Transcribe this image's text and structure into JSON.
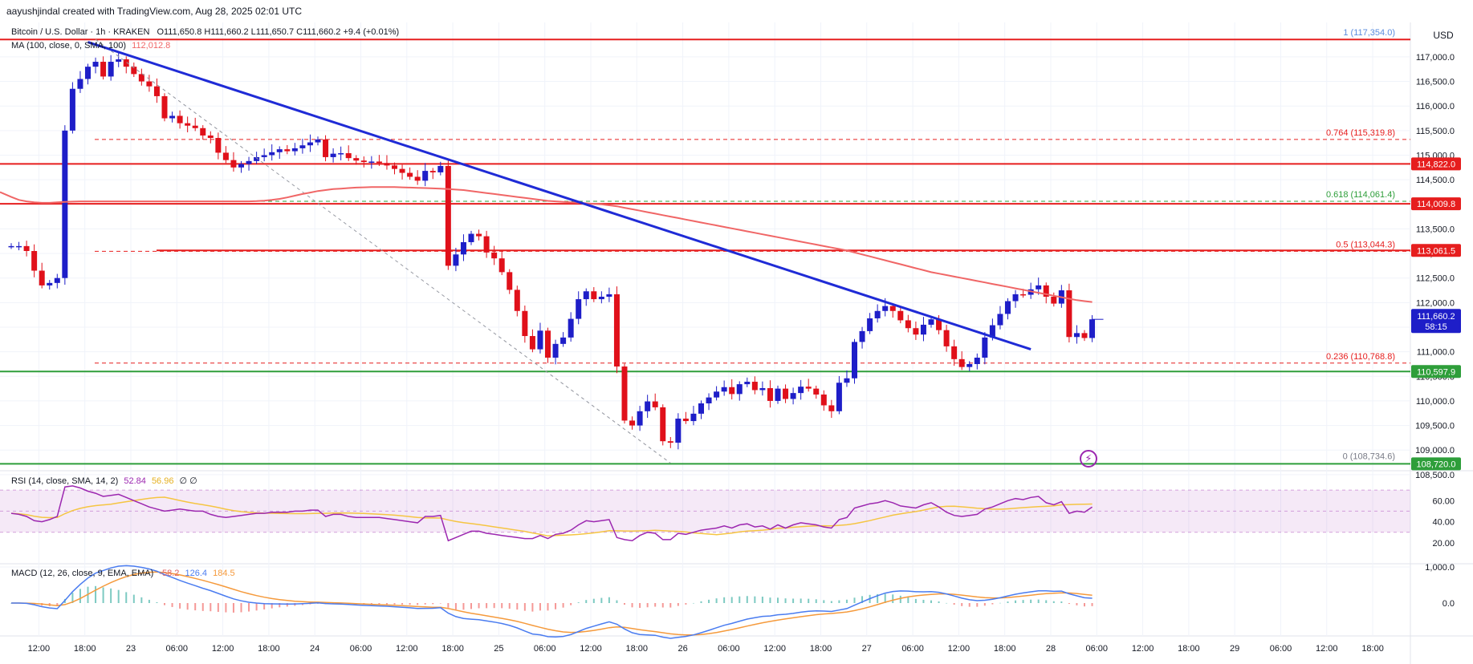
{
  "attribution": "aayushjindal created with TradingView.com, Aug 28, 2025 02:01 UTC",
  "header": {
    "symbol": "Bitcoin / U.S. Dollar · 1h · KRAKEN",
    "ohlc": "O111,650.8  H111,660.2  L111,650.7  C111,660.2  +9.4 (+0.01%)",
    "ma_label": "MA (100, close, 0, SMA, 100)",
    "ma_value": "112,012.8",
    "currency": "USD"
  },
  "colors": {
    "up": "#1e1ec8",
    "down": "#e0101a",
    "trend": "#1f2bd6",
    "ma": "#f06666",
    "red_level": "#e61e1e",
    "green_level": "#2e9e3a",
    "rsi": "#9c27b0",
    "rsi_ma": "#f5c542",
    "macd": "#4a7cf0",
    "signal": "#f59a3c"
  },
  "chart_data": [
    {
      "type": "candlestick",
      "title": "Bitcoin / U.S. Dollar · 1h · KRAKEN",
      "ylim": [
        108400,
        117700
      ],
      "y_ticks": [
        "117,000.0",
        "116,500.0",
        "116,000.0",
        "115,500.0",
        "115,000.0",
        "114,500.0",
        "114,000.0",
        "113,500.0",
        "113,000.0",
        "112,500.0",
        "112,000.0",
        "111,500.0",
        "111,000.0",
        "110,500.0",
        "110,000.0",
        "109,500.0",
        "109,000.0",
        "108,500.0"
      ],
      "x_ticks": [
        {
          "label": "12:00",
          "i": 3.6
        },
        {
          "label": "18:00",
          "i": 9.6
        },
        {
          "label": "23",
          "i": 15.6
        },
        {
          "label": "06:00",
          "i": 21.6
        },
        {
          "label": "12:00",
          "i": 27.6
        },
        {
          "label": "18:00",
          "i": 33.6
        },
        {
          "label": "24",
          "i": 39.6
        },
        {
          "label": "06:00",
          "i": 45.6
        },
        {
          "label": "12:00",
          "i": 51.6
        },
        {
          "label": "18:00",
          "i": 57.6
        },
        {
          "label": "25",
          "i": 63.6
        },
        {
          "label": "06:00",
          "i": 69.6
        },
        {
          "label": "12:00",
          "i": 75.6
        },
        {
          "label": "18:00",
          "i": 81.6
        },
        {
          "label": "26",
          "i": 87.6
        },
        {
          "label": "06:00",
          "i": 93.6
        },
        {
          "label": "12:00",
          "i": 99.6
        },
        {
          "label": "18:00",
          "i": 105.6
        },
        {
          "label": "27",
          "i": 111.6
        },
        {
          "label": "06:00",
          "i": 117.6
        },
        {
          "label": "12:00",
          "i": 123.6
        },
        {
          "label": "18:00",
          "i": 129.6
        },
        {
          "label": "28",
          "i": 135.6
        },
        {
          "label": "06:00",
          "i": 141.6
        },
        {
          "label": "12:00",
          "i": 147.6
        },
        {
          "label": "18:00",
          "i": 153.6
        },
        {
          "label": "29",
          "i": 159.6
        },
        {
          "label": "06:00",
          "i": 165.6
        },
        {
          "label": "12:00",
          "i": 171.6
        },
        {
          "label": "18:00",
          "i": 177.6
        }
      ],
      "closes": [
        113150,
        113150,
        113050,
        112650,
        112350,
        112400,
        112500,
        115500,
        116350,
        116550,
        116800,
        116900,
        116600,
        116900,
        116950,
        116800,
        116650,
        116500,
        116400,
        116200,
        115750,
        115800,
        115650,
        115600,
        115550,
        115400,
        115350,
        115050,
        114900,
        114750,
        114820,
        114880,
        114960,
        115000,
        115060,
        115120,
        115080,
        115140,
        115200,
        115260,
        115320,
        114960,
        115030,
        115040,
        114940,
        114890,
        114860,
        114870,
        114840,
        114790,
        114720,
        114640,
        114560,
        114480,
        114680,
        114650,
        114780,
        112750,
        112980,
        113230,
        113400,
        113350,
        113020,
        112900,
        112620,
        112260,
        111830,
        111320,
        111050,
        111430,
        110880,
        111160,
        111290,
        111670,
        112070,
        112230,
        112070,
        112120,
        112170,
        110700,
        109600,
        109500,
        109790,
        109990,
        109870,
        109180,
        109150,
        109640,
        109590,
        109740,
        109950,
        110070,
        110190,
        110280,
        110140,
        110340,
        110390,
        110220,
        110260,
        110000,
        110250,
        110040,
        110160,
        110290,
        110250,
        110130,
        109910,
        109790,
        110370,
        110460,
        111200,
        111420,
        111680,
        111830,
        111930,
        111830,
        111640,
        111480,
        111350,
        111550,
        111660,
        111440,
        111110,
        110850,
        110690,
        110750,
        110880,
        111290,
        111540,
        111770,
        112030,
        112170,
        112160,
        112270,
        112350,
        112120,
        111980,
        112250,
        111300,
        111380,
        111280,
        111660
      ],
      "opens": [
        113150,
        113150,
        113150,
        113050,
        112650,
        112350,
        112400,
        112500,
        115500,
        116350,
        116550,
        116800,
        116900,
        116600,
        116900,
        116950,
        116800,
        116650,
        116500,
        116400,
        116200,
        115750,
        115800,
        115650,
        115600,
        115550,
        115400,
        115350,
        115050,
        114900,
        114750,
        114820,
        114880,
        114960,
        115000,
        115060,
        115120,
        115080,
        115140,
        115200,
        115260,
        115320,
        114960,
        115030,
        115040,
        114940,
        114890,
        114860,
        114870,
        114840,
        114790,
        114720,
        114640,
        114560,
        114480,
        114680,
        114650,
        114780,
        112750,
        112980,
        113230,
        113400,
        113350,
        113020,
        112900,
        112620,
        112260,
        111830,
        111320,
        111050,
        111430,
        110880,
        111160,
        111290,
        111670,
        112070,
        112230,
        112070,
        112120,
        112170,
        110700,
        109600,
        109500,
        109790,
        109990,
        109870,
        109180,
        109150,
        109640,
        109590,
        109740,
        109950,
        110070,
        110190,
        110280,
        110140,
        110340,
        110390,
        110220,
        110260,
        110000,
        110250,
        110040,
        110160,
        110290,
        110250,
        110130,
        109910,
        109790,
        110370,
        110460,
        111200,
        111420,
        111680,
        111830,
        111930,
        111830,
        111640,
        111480,
        111350,
        111550,
        111660,
        111440,
        111110,
        110850,
        110690,
        110750,
        110880,
        111290,
        111540,
        111770,
        112030,
        112170,
        112160,
        112270,
        112350,
        112120,
        111980,
        112250,
        111300,
        111380,
        111280
      ],
      "ma100": [
        114150,
        114090,
        114060,
        114040,
        114030,
        114030,
        114040,
        114050,
        114055,
        114060,
        114060,
        114060,
        114060,
        114060,
        114060,
        114060,
        114060,
        114060,
        114060,
        114060,
        114060,
        114060,
        114060,
        114060,
        114060,
        114060,
        114060,
        114060,
        114060,
        114060,
        114060,
        114060,
        114065,
        114075,
        114090,
        114110,
        114140,
        114175,
        114210,
        114240,
        114270,
        114290,
        114310,
        114320,
        114330,
        114340,
        114345,
        114350,
        114350,
        114350,
        114350,
        114345,
        114340,
        114335,
        114330,
        114325,
        114320,
        114310,
        114300,
        114290,
        114270,
        114250,
        114230,
        114210,
        114190,
        114170,
        114150,
        114130,
        114110,
        114090,
        114070,
        114060,
        114050,
        114040,
        114030,
        114020,
        114010,
        114000,
        113980,
        113960,
        113930,
        113900,
        113870,
        113840,
        113810,
        113780,
        113750,
        113720,
        113690,
        113660,
        113630,
        113600,
        113570,
        113540,
        113510,
        113480,
        113450,
        113420,
        113390,
        113360,
        113330,
        113300,
        113270,
        113240,
        113210,
        113180,
        113150,
        113120,
        113090,
        113060,
        113020,
        112980,
        112940,
        112900,
        112860,
        112820,
        112780,
        112740,
        112700,
        112660,
        112620,
        112590,
        112560,
        112530,
        112500,
        112470,
        112440,
        112410,
        112380,
        112350,
        112320,
        112290,
        112260,
        112230,
        112200,
        112170,
        112140,
        112110,
        112080,
        112050,
        112030,
        112013
      ],
      "rsi": [
        48,
        47,
        45,
        41,
        40,
        42,
        45,
        73,
        74,
        72,
        69,
        67,
        64,
        65,
        66,
        63,
        60,
        57,
        54,
        52,
        50,
        51,
        52,
        51,
        50,
        50,
        47,
        45,
        44,
        45,
        46,
        47,
        48,
        48,
        49,
        49,
        49,
        50,
        50,
        51,
        51,
        45,
        47,
        47,
        45,
        44,
        44,
        44,
        44,
        43,
        42,
        41,
        40,
        39,
        45,
        45,
        46,
        22,
        25,
        28,
        31,
        31,
        29,
        28,
        27,
        26,
        25,
        24,
        24,
        27,
        24,
        28,
        29,
        32,
        37,
        41,
        40,
        41,
        42,
        25,
        23,
        22,
        27,
        30,
        29,
        23,
        23,
        29,
        28,
        30,
        32,
        33,
        34,
        36,
        34,
        37,
        38,
        35,
        36,
        33,
        37,
        34,
        37,
        39,
        38,
        37,
        35,
        34,
        42,
        44,
        53,
        55,
        57,
        58,
        60,
        58,
        55,
        54,
        53,
        56,
        58,
        54,
        49,
        46,
        45,
        46,
        47,
        52,
        54,
        57,
        60,
        62,
        61,
        63,
        64,
        58,
        56,
        59,
        48,
        50,
        49,
        54
      ],
      "rsi_levels": [
        70,
        50,
        30
      ],
      "rsi_ticks": [
        "60.00",
        "40.00",
        "20.00"
      ],
      "macd_ticks": [
        "1,000.0",
        "0.0"
      ],
      "fib_levels": [
        {
          "label": "1 (117,354.0)",
          "value": 117354,
          "color": "#5b8cde"
        },
        {
          "label": "0.764 (115,319.8)",
          "value": 115320,
          "color": "#e61e1e"
        },
        {
          "label": "0.618 (114,061.4)",
          "value": 114061,
          "color": "#2e9e3a"
        },
        {
          "label": "0.5 (113,044.3)",
          "value": 113044,
          "color": "#e61e1e"
        },
        {
          "label": "0.236 (110,768.8)",
          "value": 110769,
          "color": "#e61e1e"
        },
        {
          "label": "0 (108,734.6)",
          "value": 108735,
          "color": "#787b86"
        }
      ],
      "horizontal_levels": [
        {
          "label": "114,822.0",
          "value": 114822,
          "kind": "red"
        },
        {
          "label": "114,009.8",
          "value": 114010,
          "kind": "red"
        },
        {
          "label": "113,061.5",
          "value": 113062,
          "kind": "red"
        },
        {
          "label": "110,597.9",
          "value": 110598,
          "kind": "green"
        },
        {
          "label": "108,720.0",
          "value": 108720,
          "kind": "green"
        }
      ],
      "top_level": 117354,
      "current_price": {
        "label": "111,660.2",
        "countdown": "58:15"
      },
      "trendline": {
        "from": [
          10,
          117300
        ],
        "to": [
          133,
          111050
        ]
      },
      "rsi_header": {
        "label": "RSI (14, close, SMA, 14, 2)",
        "v1": "52.84",
        "v2": "56.96",
        "v3": "∅  ∅"
      },
      "macd_header": {
        "label": "MACD (12, 26, close, 9, EMA, EMA)",
        "v1": "-58.2",
        "v2": "126.4",
        "v3": "184.5"
      }
    }
  ]
}
